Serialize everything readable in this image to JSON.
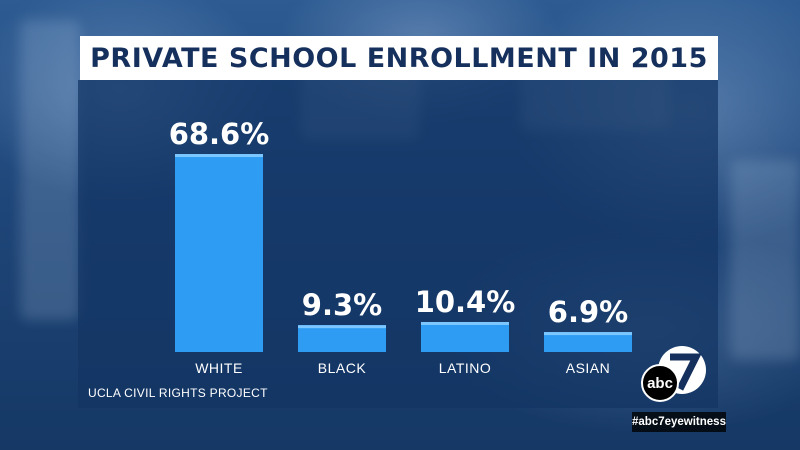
{
  "title": "PRIVATE SCHOOL ENROLLMENT IN 2015",
  "source": "UCLA CIVIL RIGHTS PROJECT",
  "brand": {
    "logo_text": "abc",
    "logo_number": "7",
    "hashtag": "#abc7eyewitness"
  },
  "colors": {
    "bar": "#2e9cf2",
    "bar_top": "#7cc7ff",
    "title_text": "#15305c",
    "panel": "#12346a"
  },
  "chart_data": {
    "type": "bar",
    "title": "PRIVATE SCHOOL ENROLLMENT IN 2015",
    "categories": [
      "WHITE",
      "BLACK",
      "LATINO",
      "ASIAN"
    ],
    "values": [
      68.6,
      9.3,
      10.4,
      6.9
    ],
    "value_labels": [
      "68.6%",
      "9.3%",
      "10.4%",
      "6.9%"
    ],
    "xlabel": "",
    "ylabel": "",
    "ylim": [
      0,
      70
    ],
    "grid": false,
    "legend": "none"
  }
}
